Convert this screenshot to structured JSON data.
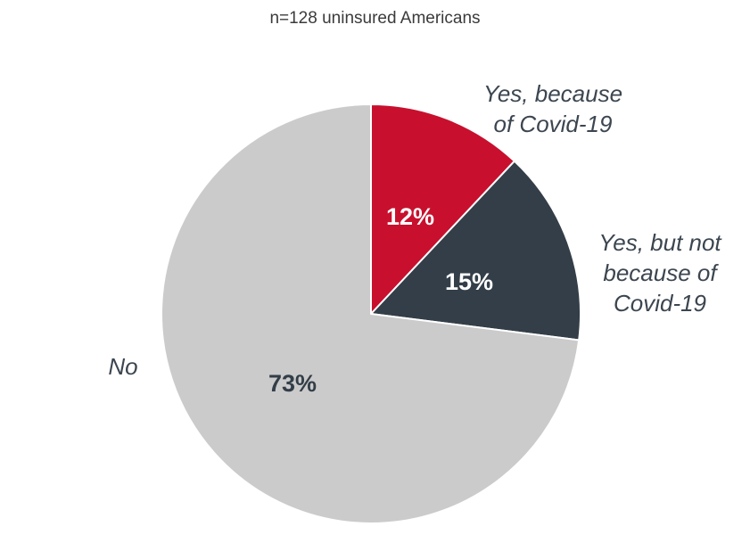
{
  "chart_data": {
    "type": "pie",
    "subtitle": "n=128 uninsured Americans",
    "slices": [
      {
        "name": "Yes, because of Covid-19",
        "label_lines": [
          "Yes, because",
          "of Covid-19"
        ],
        "value": 12,
        "value_label": "12%",
        "color": "#c8102e",
        "value_color": "#ffffff"
      },
      {
        "name": "Yes, but not because of Covid-19",
        "label_lines": [
          "Yes, but not",
          "because of",
          "Covid-19"
        ],
        "value": 15,
        "value_label": "15%",
        "color": "#333e48",
        "value_color": "#ffffff"
      },
      {
        "name": "No",
        "label_lines": [
          "No"
        ],
        "value": 73,
        "value_label": "73%",
        "color": "#cbcbcb",
        "value_color": "#333e48"
      }
    ],
    "start_angle_deg": 0,
    "direction": "clockwise"
  }
}
